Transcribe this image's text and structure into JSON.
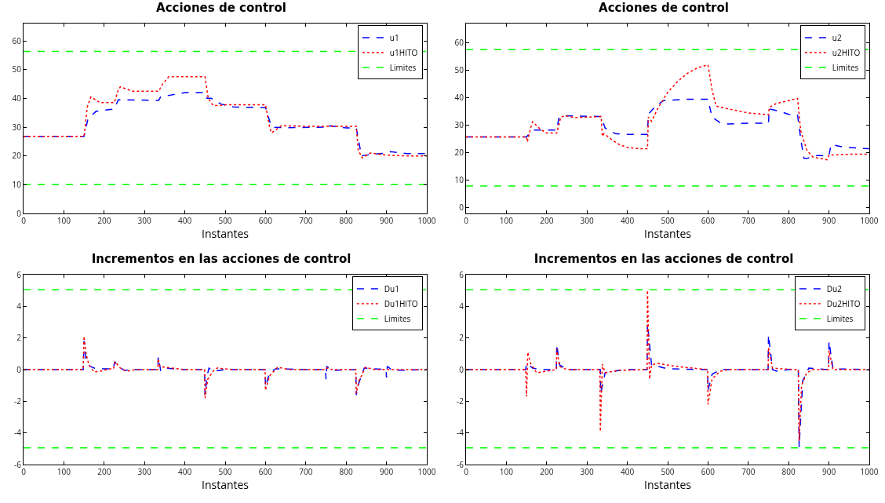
{
  "chart_data": [
    {
      "type": "line",
      "title": "Acciones de control",
      "xlabel": "Instantes",
      "xlim": [
        0,
        1000
      ],
      "xticks": [
        0,
        100,
        200,
        300,
        400,
        500,
        600,
        700,
        800,
        900,
        1000
      ],
      "ylim": [
        0,
        66
      ],
      "yticks": [
        0,
        10,
        20,
        30,
        40,
        50,
        60
      ],
      "legend": "top right",
      "grid": false,
      "series": [
        {
          "name": "u1",
          "color": "#0000ff",
          "line_style": "dashed",
          "x": [
            0,
            150,
            160,
            180,
            225,
            235,
            335,
            340,
            380,
            400,
            450,
            455,
            465,
            490,
            520,
            600,
            615,
            650,
            750,
            752,
            760,
            800,
            825,
            838,
            860,
            900,
            910,
            950,
            1000
          ],
          "values": [
            26.8,
            26.8,
            33,
            35.5,
            36.3,
            39.5,
            39.3,
            40.5,
            41.5,
            42,
            42,
            40,
            40,
            38,
            37,
            36.8,
            30,
            29.8,
            30,
            29.5,
            30.5,
            29.7,
            29.7,
            20,
            20.5,
            21,
            21.5,
            20.8,
            20.8
          ]
        },
        {
          "name": "u1HITO",
          "color": "#ff0000",
          "line_style": "dotted",
          "x": [
            0,
            150,
            158,
            167,
            190,
            225,
            235,
            240,
            270,
            335,
            345,
            360,
            450,
            458,
            470,
            485,
            500,
            600,
            610,
            615,
            640,
            700,
            825,
            830,
            840,
            860,
            900,
            950,
            1000
          ],
          "values": [
            26.8,
            26.8,
            37,
            40.5,
            38.5,
            38.5,
            43,
            44,
            42.5,
            42.5,
            45,
            47.5,
            47.5,
            40,
            37.5,
            37.5,
            37.8,
            37.8,
            30,
            28,
            30.5,
            30.3,
            30.3,
            22,
            19.3,
            21,
            20.3,
            20,
            20
          ]
        },
        {
          "name": "Limites",
          "color": "#00ff00",
          "line_style": "dashed",
          "x": [
            0,
            1000
          ],
          "values": [
            56.3,
            56.3
          ]
        },
        {
          "color": "#00ff00",
          "line_style": "dashed",
          "x": [
            0,
            1000
          ],
          "values": [
            10,
            10
          ]
        }
      ]
    },
    {
      "type": "line",
      "title": "Acciones de control",
      "xlabel": "Instantes",
      "xlim": [
        0,
        1000
      ],
      "xticks": [
        0,
        100,
        200,
        300,
        400,
        500,
        600,
        700,
        800,
        900,
        1000
      ],
      "ylim": [
        -2,
        67
      ],
      "yticks": [
        0,
        10,
        20,
        30,
        40,
        50,
        60
      ],
      "legend": "top right",
      "grid": false,
      "series": [
        {
          "name": "u2",
          "color": "#0000ff",
          "line_style": "dashed",
          "x": [
            0,
            150,
            160,
            170,
            225,
            230,
            240,
            335,
            345,
            370,
            400,
            450,
            452,
            470,
            490,
            550,
            600,
            610,
            630,
            650,
            700,
            750,
            752,
            780,
            800,
            822,
            830,
            838,
            845,
            870,
            900,
            905,
            940,
            1000
          ],
          "values": [
            25.8,
            25.8,
            27.5,
            28.3,
            28.3,
            32.5,
            33.5,
            33.2,
            29,
            27,
            26.7,
            26.7,
            34,
            37,
            39,
            39.5,
            39.5,
            33,
            31,
            30.5,
            30.8,
            30.8,
            36,
            35,
            34,
            33.8,
            25,
            18,
            18,
            19,
            19,
            23,
            22,
            21.5
          ]
        },
        {
          "name": "u2HITO",
          "color": "#ff0000",
          "line_style": "dotted",
          "x": [
            0,
            150,
            152,
            160,
            165,
            185,
            200,
            225,
            235,
            245,
            270,
            335,
            338,
            342,
            360,
            380,
            400,
            430,
            450,
            452,
            460,
            475,
            500,
            525,
            550,
            575,
            600,
            610,
            620,
            650,
            700,
            740,
            750,
            752,
            770,
            800,
            822,
            830,
            845,
            860,
            895,
            900,
            950,
            1000
          ],
          "values": [
            25.8,
            25.8,
            24,
            29,
            31.3,
            28.5,
            27.2,
            27.2,
            33,
            33.5,
            32.8,
            33.2,
            26,
            27,
            25,
            23,
            22,
            21.5,
            21.5,
            33,
            31.5,
            36,
            42,
            46,
            49,
            51,
            52,
            43,
            37,
            36,
            34.5,
            34,
            33.8,
            36.5,
            38,
            39,
            39.8,
            28,
            21,
            18.5,
            17.5,
            19.2,
            19.5,
            19.5
          ]
        },
        {
          "name": "Limites",
          "color": "#00ff00",
          "line_style": "dashed",
          "x": [
            0,
            1000
          ],
          "values": [
            57.5,
            57.5
          ]
        },
        {
          "color": "#00ff00",
          "line_style": "dashed",
          "x": [
            0,
            1000
          ],
          "values": [
            8,
            8
          ]
        }
      ]
    },
    {
      "type": "line",
      "title": "Incrementos en las acciones de control",
      "xlabel": "Instantes",
      "xlim": [
        0,
        1000
      ],
      "xticks": [
        0,
        100,
        200,
        300,
        400,
        500,
        600,
        700,
        800,
        900,
        1000
      ],
      "ylim": [
        -6,
        6
      ],
      "yticks": [
        -6,
        -4,
        -2,
        0,
        2,
        4,
        6
      ],
      "legend": "top right",
      "grid": false,
      "series": [
        {
          "name": "Du1",
          "color": "#0000ff",
          "line_style": "dashed",
          "x": [
            0,
            148,
            150,
            155,
            165,
            180,
            223,
            226,
            235,
            250,
            270,
            333,
            334,
            340,
            350,
            400,
            449,
            450,
            455,
            460,
            470,
            500,
            599,
            600,
            610,
            625,
            700,
            749,
            750,
            752,
            765,
            824,
            825,
            832,
            845,
            899,
            900,
            902,
            915,
            1000
          ],
          "values": [
            0,
            0,
            1.8,
            0.6,
            0.2,
            0.05,
            0.05,
            0.5,
            0.2,
            -0.05,
            0,
            0,
            0.8,
            -0.05,
            0.1,
            0,
            0,
            -1.6,
            -0.4,
            0.1,
            -0.1,
            0,
            0,
            -1.1,
            -0.2,
            0.05,
            0,
            0,
            -0.6,
            0.2,
            -0.05,
            0,
            -1.6,
            -0.8,
            0.1,
            0,
            -0.5,
            0.2,
            -0.05,
            0
          ]
        },
        {
          "name": "Du1HITO",
          "color": "#ff0000",
          "line_style": "dotted",
          "x": [
            0,
            148,
            150,
            155,
            162,
            175,
            190,
            215,
            223,
            227,
            240,
            255,
            280,
            333,
            334,
            338,
            350,
            400,
            449,
            450,
            457,
            470,
            480,
            520,
            599,
            600,
            610,
            630,
            660,
            749,
            752,
            765,
            824,
            825,
            832,
            848,
            870,
            1000
          ],
          "values": [
            0,
            0,
            2.1,
            1,
            0.3,
            -0.15,
            -0.1,
            0.05,
            0.05,
            0.5,
            0.1,
            -0.1,
            0,
            0,
            0.7,
            0.2,
            0.15,
            0,
            0,
            -1.8,
            -0.6,
            -0.1,
            0.1,
            0,
            0,
            -1.3,
            -0.4,
            0.15,
            0,
            0,
            0.1,
            0,
            0,
            -1.5,
            -0.7,
            0.15,
            0,
            0
          ]
        },
        {
          "name": "Limites",
          "color": "#00ff00",
          "line_style": "dashed",
          "x": [
            0,
            1000
          ],
          "values": [
            5.05,
            5.05
          ]
        },
        {
          "color": "#00ff00",
          "line_style": "dashed",
          "x": [
            0,
            1000
          ],
          "values": [
            -4.95,
            -4.95
          ]
        }
      ]
    },
    {
      "type": "line",
      "title": "Incrementos en las acciones de control",
      "xlabel": "Instantes",
      "xlim": [
        0,
        1000
      ],
      "xticks": [
        0,
        100,
        200,
        300,
        400,
        500,
        600,
        700,
        800,
        900,
        1000
      ],
      "ylim": [
        -6,
        6
      ],
      "yticks": [
        -6,
        -4,
        -2,
        0,
        2,
        4,
        6
      ],
      "legend": "top right",
      "grid": false,
      "series": [
        {
          "name": "Du2",
          "color": "#0000ff",
          "line_style": "dashed",
          "x": [
            0,
            148,
            150,
            165,
            185,
            224,
            225,
            232,
            250,
            333,
            334,
            345,
            380,
            400,
            449,
            450,
            460,
            500,
            599,
            600,
            610,
            630,
            749,
            750,
            760,
            770,
            800,
            824,
            826,
            835,
            850,
            899,
            900,
            910,
            1000
          ],
          "values": [
            0,
            0,
            0.4,
            0.1,
            0,
            0,
            1.6,
            0.3,
            0,
            0,
            -1.5,
            -0.2,
            -0.05,
            0,
            0,
            2.9,
            0.3,
            0.05,
            0,
            -1.3,
            -0.3,
            0,
            0,
            2.2,
            0,
            -0.1,
            0,
            0,
            -4.9,
            -0.7,
            0.1,
            0,
            1.8,
            0.05,
            0
          ]
        },
        {
          "name": "Du2HITO",
          "color": "#ff0000",
          "line_style": "dotted",
          "x": [
            0,
            148,
            150,
            153,
            160,
            175,
            200,
            224,
            225,
            232,
            250,
            332,
            333,
            338,
            345,
            380,
            449,
            450,
            455,
            460,
            475,
            520,
            580,
            599,
            600,
            610,
            630,
            650,
            749,
            750,
            760,
            780,
            824,
            826,
            832,
            845,
            860,
            899,
            900,
            910,
            1000
          ],
          "values": [
            0,
            0,
            -1.7,
            1.1,
            0.4,
            -0.2,
            -0.1,
            0,
            1.3,
            0.2,
            0,
            0,
            -3.9,
            0.35,
            -0.2,
            -0.05,
            0,
            5,
            -0.6,
            0.3,
            0.4,
            0.2,
            0.05,
            0,
            -2.2,
            -0.6,
            -0.1,
            0,
            0,
            1.4,
            0.1,
            0.05,
            0,
            -4.5,
            -1,
            -0.2,
            0,
            0,
            1.2,
            0,
            0
          ]
        },
        {
          "name": "Limites",
          "color": "#00ff00",
          "line_style": "dashed",
          "x": [
            0,
            1000
          ],
          "values": [
            5.05,
            5.05
          ]
        },
        {
          "color": "#00ff00",
          "line_style": "dashed",
          "x": [
            0,
            1000
          ],
          "values": [
            -4.95,
            -4.95
          ]
        }
      ]
    }
  ]
}
